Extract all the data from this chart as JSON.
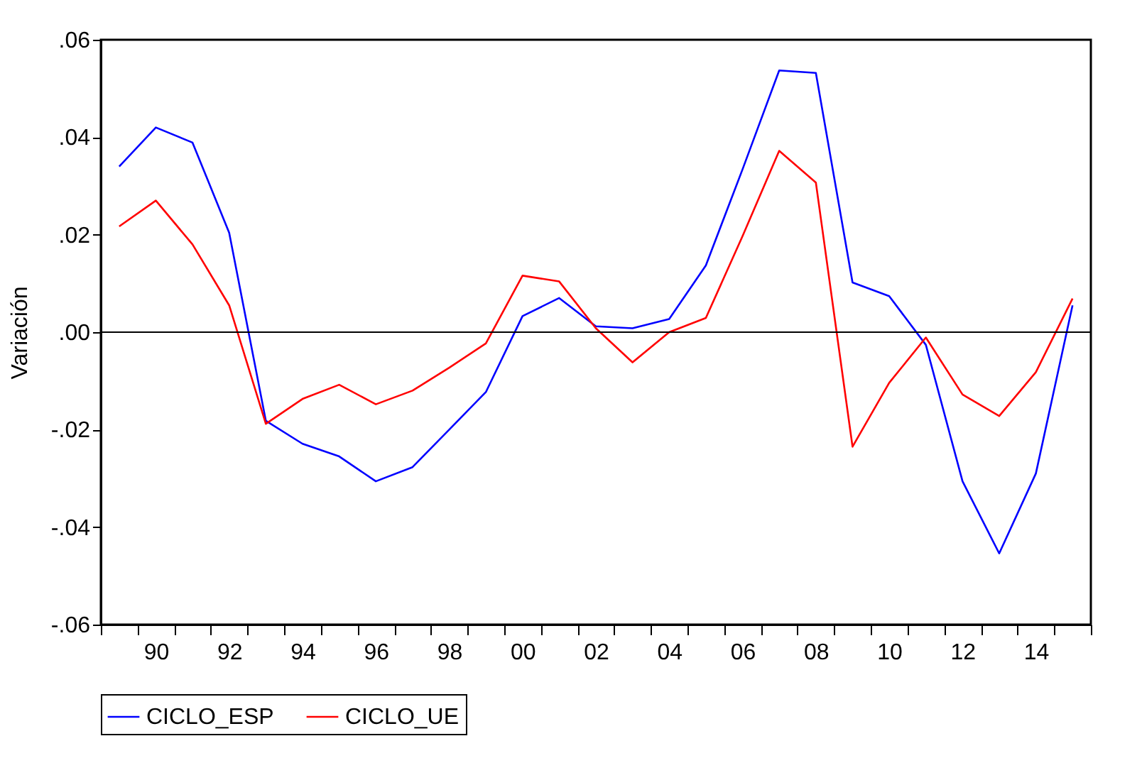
{
  "chart_data": {
    "type": "line",
    "ylabel": "Variación",
    "categories": [
      null,
      "90",
      null,
      "92",
      null,
      "94",
      null,
      "96",
      null,
      "98",
      null,
      "00",
      null,
      "02",
      null,
      "04",
      null,
      "06",
      null,
      "08",
      null,
      "10",
      null,
      "12",
      null,
      "14",
      null
    ],
    "series": [
      {
        "name": "CICLO_ESP",
        "color": "#0000ff",
        "values": [
          0.034,
          0.042,
          0.0389,
          0.0204,
          -0.0182,
          -0.0229,
          -0.0255,
          -0.0306,
          -0.0277,
          -0.02,
          -0.0123,
          0.0033,
          0.007,
          0.0012,
          0.0008,
          0.0027,
          0.0137,
          0.0334,
          0.0537,
          0.0532,
          0.0102,
          0.0074,
          -0.0026,
          -0.0306,
          -0.0454,
          -0.029,
          0.0055
        ]
      },
      {
        "name": "CICLO_UE",
        "color": "#ff0000",
        "values": [
          0.0217,
          0.027,
          0.018,
          0.0055,
          -0.0188,
          -0.0137,
          -0.0108,
          -0.0148,
          -0.012,
          -0.0073,
          -0.0023,
          0.0116,
          0.0104,
          0.0008,
          -0.0062,
          0,
          0.0029,
          0.0197,
          0.0372,
          0.0307,
          -0.0235,
          -0.0104,
          -0.0011,
          -0.0128,
          -0.0172,
          -0.0082,
          0.0069
        ]
      }
    ],
    "ylim": [
      -0.06,
      0.06
    ],
    "yticks": [
      {
        "value": -0.06,
        "label": "-.06"
      },
      {
        "value": -0.04,
        "label": "-.04"
      },
      {
        "value": -0.02,
        "label": "-.02"
      },
      {
        "value": 0,
        "label": ".00"
      },
      {
        "value": 0.02,
        "label": ".02"
      },
      {
        "value": 0.04,
        "label": ".04"
      },
      {
        "value": 0.06,
        "label": ".06"
      }
    ],
    "ref_lines": [
      {
        "axis": "y",
        "value": 0,
        "color": "#000000"
      }
    ],
    "grid": false,
    "legend": "bottom",
    "line_style": "solid"
  }
}
